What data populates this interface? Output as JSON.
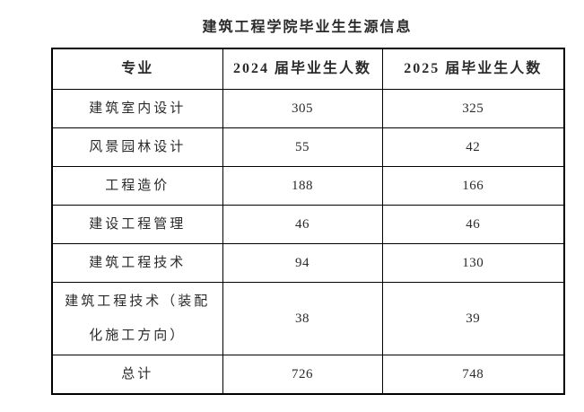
{
  "title": "建筑工程学院毕业生生源信息",
  "table": {
    "headers": [
      "专业",
      "2024 届毕业生人数",
      "2025 届毕业生人数"
    ],
    "rows": [
      [
        "建筑室内设计",
        "305",
        "325"
      ],
      [
        "风景园林设计",
        "55",
        "42"
      ],
      [
        "工程造价",
        "188",
        "166"
      ],
      [
        "建设工程管理",
        "46",
        "46"
      ],
      [
        "建筑工程技术",
        "94",
        "130"
      ],
      [
        "建筑工程技术（装配化施工方向）",
        "38",
        "39"
      ],
      [
        "总计",
        "726",
        "748"
      ]
    ]
  }
}
